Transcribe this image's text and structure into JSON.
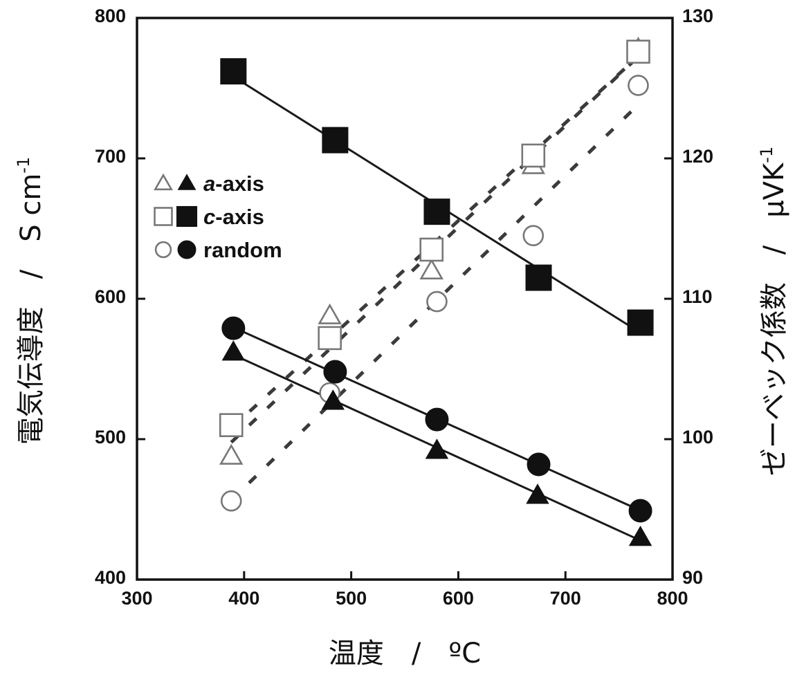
{
  "chart_data": {
    "type": "scatter",
    "xlabel": "温度　/　ºC",
    "ylabel_left": "電気伝導度　/　S cm",
    "ylabel_left_sup": "-1",
    "ylabel_right": "ゼーベック係数　/　μVK",
    "ylabel_right_sup": "-1",
    "x_ticks": [
      "300",
      "400",
      "500",
      "600",
      "700",
      "800"
    ],
    "y_left_ticks": [
      "400",
      "500",
      "600",
      "700",
      "800"
    ],
    "y_right_ticks": [
      "90",
      "100",
      "110",
      "120",
      "130"
    ],
    "xlim": [
      300,
      800
    ],
    "ylim_left": [
      400,
      800
    ],
    "ylim_right": [
      90,
      130
    ],
    "grid": false,
    "legend_position": "upper-left",
    "legend": [
      {
        "label_italic": "a",
        "label_rest": "-axis",
        "marker": "triangle"
      },
      {
        "label_italic": "c",
        "label_rest": "-axis",
        "marker": "square"
      },
      {
        "label_italic": "",
        "label_rest": "random",
        "marker": "circle"
      }
    ],
    "series": [
      {
        "name": "a-axis",
        "quantity": "electrical conductivity",
        "axis": "left",
        "marker": "triangle",
        "filled": true,
        "x": [
          390,
          483,
          580,
          674,
          770
        ],
        "y": [
          562,
          527,
          492,
          460,
          430
        ]
      },
      {
        "name": "c-axis",
        "quantity": "electrical conductivity",
        "axis": "left",
        "marker": "square",
        "filled": true,
        "x": [
          390,
          485,
          580,
          675,
          770
        ],
        "y": [
          762,
          713,
          662,
          615,
          583
        ]
      },
      {
        "name": "random",
        "quantity": "electrical conductivity",
        "axis": "left",
        "marker": "circle",
        "filled": true,
        "x": [
          390,
          485,
          580,
          675,
          770
        ],
        "y": [
          579,
          548,
          514,
          482,
          449
        ]
      },
      {
        "name": "a-axis",
        "quantity": "Seebeck coefficient",
        "axis": "right",
        "marker": "triangle",
        "filled": false,
        "x": [
          388,
          480,
          575,
          670,
          768
        ],
        "y": [
          98.8,
          108.8,
          112,
          119.5,
          127.8
        ]
      },
      {
        "name": "c-axis",
        "quantity": "Seebeck coefficient",
        "axis": "right",
        "marker": "square",
        "filled": false,
        "x": [
          388,
          480,
          575,
          670,
          768
        ],
        "y": [
          101,
          107.2,
          113.5,
          120.2,
          127.6
        ]
      },
      {
        "name": "random",
        "quantity": "Seebeck coefficient",
        "axis": "right",
        "marker": "circle",
        "filled": false,
        "x": [
          388,
          480,
          580,
          670,
          768
        ],
        "y": [
          95.6,
          103.3,
          109.8,
          114.5,
          125.2
        ]
      }
    ]
  }
}
